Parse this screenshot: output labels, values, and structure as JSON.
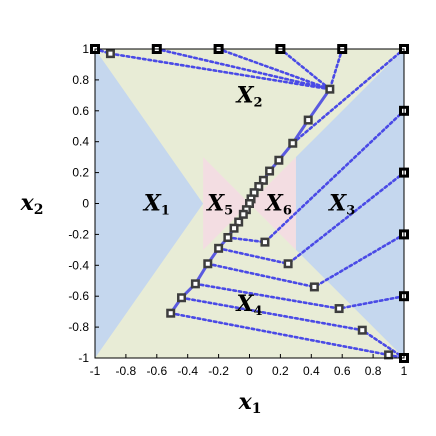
{
  "chart_data": {
    "type": "scatter",
    "xlabel": "x",
    "xlabel_sub": "1",
    "ylabel": "x",
    "ylabel_sub": "2",
    "xlim": [
      -1,
      1
    ],
    "ylim": [
      -1,
      1
    ],
    "xticks": [
      -1,
      -0.8,
      -0.6,
      -0.4,
      -0.2,
      0,
      0.2,
      0.4,
      0.6,
      0.8,
      1
    ],
    "xtick_labels": [
      "-1",
      "-0.8",
      "-0.6",
      "-0.4",
      "-0.2",
      "0",
      "0.2",
      "0.4",
      "0.6",
      "0.8",
      "1"
    ],
    "yticks": [
      -1,
      -0.8,
      -0.6,
      -0.4,
      -0.2,
      0,
      0.2,
      0.4,
      0.6,
      0.8,
      1
    ],
    "ytick_labels": [
      "-1",
      "-0.8",
      "-0.6",
      "-0.4",
      "-0.2",
      "0",
      "0.2",
      "0.4",
      "0.6",
      "0.8",
      "1"
    ],
    "grid": false,
    "colors": {
      "region_blue": "#c5d7ee",
      "region_green": "#e8ecd6",
      "region_pink": "#f3dde2",
      "dotted_line": "#4a4ae6",
      "trajectory": "#5a5ae0",
      "marker_edge": "#3d3d3d",
      "marker_fill": "#ffffff",
      "terminal_marker": "#000000"
    },
    "regions": [
      {
        "name": "X",
        "sub": "1",
        "color": "region_blue",
        "polygon": [
          [
            -1,
            1
          ],
          [
            -1,
            -1
          ],
          [
            -0.3,
            0
          ]
        ]
      },
      {
        "name": "X",
        "sub": "2",
        "color": "region_green",
        "polygon": [
          [
            -1,
            1
          ],
          [
            1,
            1
          ],
          [
            0.3,
            0.3
          ],
          [
            -0.3,
            0
          ]
        ]
      },
      {
        "name": "X",
        "sub": "3",
        "color": "region_blue",
        "polygon": [
          [
            1,
            1
          ],
          [
            1,
            -1
          ],
          [
            0.3,
            -0.3
          ],
          [
            0.3,
            0.3
          ]
        ]
      },
      {
        "name": "X",
        "sub": "4",
        "color": "region_green",
        "polygon": [
          [
            -1,
            -1
          ],
          [
            1,
            -1
          ],
          [
            0.3,
            -0.3
          ],
          [
            -0.3,
            -0.3
          ]
        ]
      },
      {
        "name": "X",
        "sub": "5",
        "color": "region_pink",
        "polygon": [
          [
            -0.3,
            0.3
          ],
          [
            0,
            0
          ],
          [
            -0.3,
            -0.3
          ]
        ]
      },
      {
        "name": "X",
        "sub": "6",
        "color": "region_pink",
        "polygon": [
          [
            0.3,
            0.3
          ],
          [
            0.3,
            -0.3
          ],
          [
            0,
            0
          ]
        ]
      }
    ],
    "region_labels": [
      {
        "text": "X",
        "sub": "1",
        "x": -0.6,
        "y": 0
      },
      {
        "text": "X",
        "sub": "2",
        "x": 0,
        "y": 0.7
      },
      {
        "text": "X",
        "sub": "3",
        "x": 0.6,
        "y": 0
      },
      {
        "text": "X",
        "sub": "4",
        "x": 0,
        "y": -0.65
      },
      {
        "text": "X",
        "sub": "5",
        "x": -0.19,
        "y": 0
      },
      {
        "text": "X",
        "sub": "6",
        "x": 0.19,
        "y": 0
      }
    ],
    "terminal_points": [
      [
        -1,
        1
      ],
      [
        -0.6,
        1
      ],
      [
        -0.2,
        1
      ],
      [
        0.2,
        1
      ],
      [
        0.6,
        1
      ],
      [
        1,
        1
      ],
      [
        1,
        0.6
      ],
      [
        1,
        0.2
      ],
      [
        1,
        -0.2
      ],
      [
        1,
        -0.6
      ],
      [
        1,
        -1
      ]
    ],
    "trajectory_points": [
      [
        -0.9,
        0.97
      ],
      [
        0.52,
        0.74
      ],
      [
        0.38,
        0.54
      ],
      [
        0.28,
        0.39
      ],
      [
        0.19,
        0.28
      ],
      [
        0.13,
        0.21
      ],
      [
        0.09,
        0.15
      ],
      [
        0.06,
        0.11
      ],
      [
        0.03,
        0.07
      ],
      [
        0.01,
        0.03
      ],
      [
        0,
        0
      ],
      [
        -0.02,
        -0.04
      ],
      [
        -0.04,
        -0.07
      ],
      [
        -0.07,
        -0.12
      ],
      [
        -0.1,
        -0.16
      ],
      [
        -0.14,
        -0.22
      ],
      [
        -0.2,
        -0.29
      ],
      [
        -0.27,
        -0.39
      ],
      [
        -0.35,
        -0.52
      ],
      [
        -0.44,
        -0.61
      ],
      [
        -0.51,
        -0.71
      ],
      [
        0.1,
        -0.25
      ],
      [
        0.25,
        -0.39
      ],
      [
        0.42,
        -0.54
      ],
      [
        0.58,
        -0.68
      ],
      [
        0.73,
        -0.82
      ],
      [
        0.9,
        -0.98
      ]
    ],
    "connections": [
      [
        [
          -1,
          1
        ],
        [
          -0.9,
          0.97
        ]
      ],
      [
        [
          -0.9,
          0.97
        ],
        [
          0.52,
          0.74
        ]
      ],
      [
        [
          -0.6,
          1
        ],
        [
          0.52,
          0.74
        ]
      ],
      [
        [
          -0.2,
          1
        ],
        [
          0.52,
          0.74
        ]
      ],
      [
        [
          0.2,
          1
        ],
        [
          0.52,
          0.74
        ]
      ],
      [
        [
          0.6,
          1
        ],
        [
          0.52,
          0.74
        ]
      ],
      [
        [
          1,
          1
        ],
        [
          0.28,
          0.39
        ]
      ],
      [
        [
          1,
          0.6
        ],
        [
          0.1,
          -0.25
        ]
      ],
      [
        [
          1,
          0.2
        ],
        [
          0.25,
          -0.39
        ]
      ],
      [
        [
          1,
          -0.2
        ],
        [
          0.42,
          -0.54
        ]
      ],
      [
        [
          1,
          -0.6
        ],
        [
          0.58,
          -0.68
        ]
      ],
      [
        [
          1,
          -1
        ],
        [
          0.73,
          -0.82
        ]
      ],
      [
        [
          0.9,
          -0.98
        ],
        [
          1,
          -1
        ]
      ],
      [
        [
          -0.14,
          -0.22
        ],
        [
          0.1,
          -0.25
        ]
      ],
      [
        [
          -0.2,
          -0.29
        ],
        [
          0.25,
          -0.39
        ]
      ],
      [
        [
          -0.27,
          -0.39
        ],
        [
          0.42,
          -0.54
        ]
      ],
      [
        [
          -0.35,
          -0.52
        ],
        [
          0.58,
          -0.68
        ]
      ],
      [
        [
          -0.44,
          -0.61
        ],
        [
          0.73,
          -0.82
        ]
      ],
      [
        [
          -0.51,
          -0.71
        ],
        [
          0.9,
          -0.98
        ]
      ]
    ],
    "trajectory_path": [
      [
        0.52,
        0.74
      ],
      [
        0.38,
        0.54
      ],
      [
        0.28,
        0.39
      ],
      [
        0.19,
        0.28
      ],
      [
        0.13,
        0.21
      ],
      [
        0.09,
        0.15
      ],
      [
        0.06,
        0.11
      ],
      [
        0.03,
        0.07
      ],
      [
        0.01,
        0.03
      ],
      [
        0,
        0
      ],
      [
        -0.02,
        -0.04
      ],
      [
        -0.04,
        -0.07
      ],
      [
        -0.07,
        -0.12
      ],
      [
        -0.1,
        -0.16
      ],
      [
        -0.14,
        -0.22
      ],
      [
        -0.2,
        -0.29
      ],
      [
        -0.27,
        -0.39
      ],
      [
        -0.35,
        -0.52
      ],
      [
        -0.44,
        -0.61
      ],
      [
        -0.51,
        -0.71
      ]
    ]
  }
}
